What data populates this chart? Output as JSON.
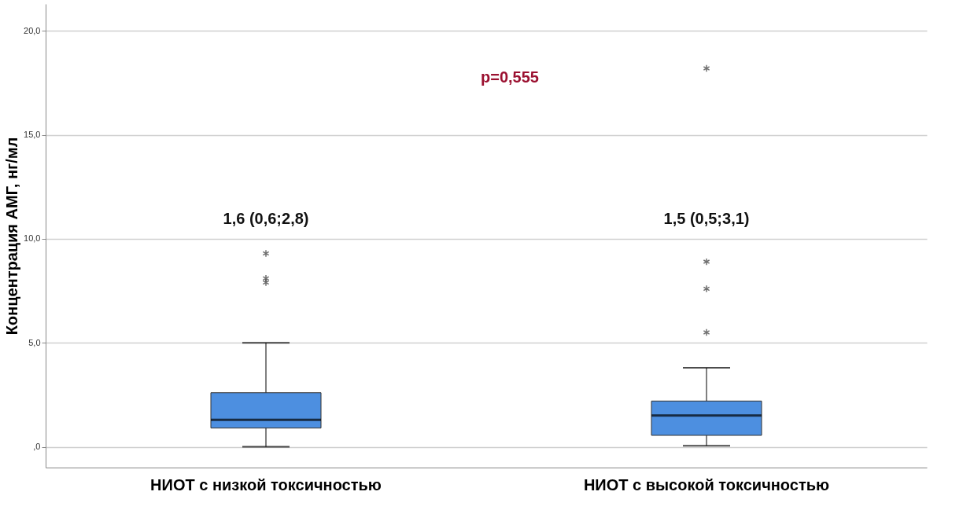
{
  "chart_data": {
    "type": "box",
    "ylabel": "Концентрация АМГ, нг/мл",
    "categories": [
      "НИОТ с низкой токсичностью",
      "НИОТ с высокой токсичностью"
    ],
    "boxes": [
      {
        "low": 0.0,
        "q1": 0.9,
        "median": 1.3,
        "q3": 2.6,
        "high": 5.0,
        "outliers": [
          9.3,
          8.1,
          7.9
        ]
      },
      {
        "low": 0.05,
        "q1": 0.55,
        "median": 1.5,
        "q3": 2.2,
        "high": 3.8,
        "outliers": [
          18.2,
          8.9,
          7.6,
          5.5
        ]
      }
    ],
    "color": "#4d8fe0",
    "ylim": [
      -1,
      21.3
    ],
    "yticks": [
      {
        "value": 0,
        "label": ",0"
      },
      {
        "value": 5,
        "label": "5,0"
      },
      {
        "value": 10,
        "label": "10,0"
      },
      {
        "value": 15,
        "label": "15,0"
      },
      {
        "value": 20,
        "label": "20,0"
      }
    ],
    "grid": "y",
    "annotations": [
      "1,6 (0,6;2,8)",
      "1,5 (0,5;3,1)",
      "p=0,555"
    ]
  }
}
